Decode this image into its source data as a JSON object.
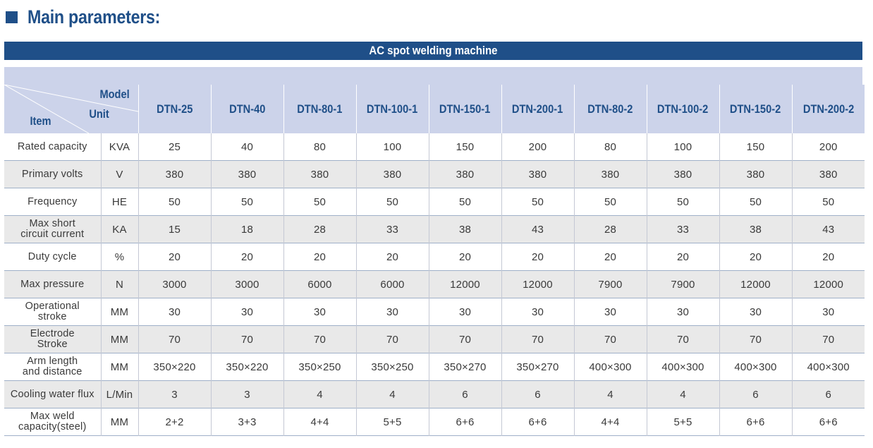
{
  "heading": "Main parameters:",
  "banner": "AC spot welding machine",
  "header": {
    "model_label": "Model",
    "unit_label": "Unit",
    "item_label": "Item",
    "models": [
      "DTN-25",
      "DTN-40",
      "DTN-80-1",
      "DTN-100-1",
      "DTN-150-1",
      "DTN-200-1",
      "DTN-80-2",
      "DTN-100-2",
      "DTN-150-2",
      "DTN-200-2"
    ]
  },
  "rows": [
    {
      "item": "Rated capacity",
      "unit": "KVA",
      "values": [
        "25",
        "40",
        "80",
        "100",
        "150",
        "200",
        "80",
        "100",
        "150",
        "200"
      ]
    },
    {
      "item": "Primary volts",
      "unit": "V",
      "values": [
        "380",
        "380",
        "380",
        "380",
        "380",
        "380",
        "380",
        "380",
        "380",
        "380"
      ]
    },
    {
      "item": "Frequency",
      "unit": "HE",
      "values": [
        "50",
        "50",
        "50",
        "50",
        "50",
        "50",
        "50",
        "50",
        "50",
        "50"
      ]
    },
    {
      "item": "Max short\ncircuit current",
      "unit": "KA",
      "values": [
        "15",
        "18",
        "28",
        "33",
        "38",
        "43",
        "28",
        "33",
        "38",
        "43"
      ]
    },
    {
      "item": "Duty cycle",
      "unit": "%",
      "values": [
        "20",
        "20",
        "20",
        "20",
        "20",
        "20",
        "20",
        "20",
        "20",
        "20"
      ]
    },
    {
      "item": "Max pressure",
      "unit": "N",
      "values": [
        "3000",
        "3000",
        "6000",
        "6000",
        "12000",
        "12000",
        "7900",
        "7900",
        "12000",
        "12000"
      ]
    },
    {
      "item": "Operational\nstroke",
      "unit": "MM",
      "values": [
        "30",
        "30",
        "30",
        "30",
        "30",
        "30",
        "30",
        "30",
        "30",
        "30"
      ]
    },
    {
      "item": "Electrode\nStroke",
      "unit": "MM",
      "values": [
        "70",
        "70",
        "70",
        "70",
        "70",
        "70",
        "70",
        "70",
        "70",
        "70"
      ]
    },
    {
      "item": "Arm length\nand distance",
      "unit": "MM",
      "values": [
        "350×220",
        "350×220",
        "350×250",
        "350×250",
        "350×270",
        "350×270",
        "400×300",
        "400×300",
        "400×300",
        "400×300"
      ]
    },
    {
      "item": "Cooling water flux",
      "unit": "L/Min",
      "values": [
        "3",
        "3",
        "4",
        "4",
        "6",
        "6",
        "4",
        "4",
        "6",
        "6"
      ]
    },
    {
      "item": "Max weld\ncapacity(steel)",
      "unit": "MM",
      "values": [
        "2+2",
        "3+3",
        "4+4",
        "5+5",
        "6+6",
        "6+6",
        "4+4",
        "5+5",
        "6+6",
        "6+6"
      ]
    }
  ],
  "colors": {
    "brand": "#1f4f88",
    "header_bg": "#ccd3ea",
    "row_alt": "#e9e9e9"
  }
}
